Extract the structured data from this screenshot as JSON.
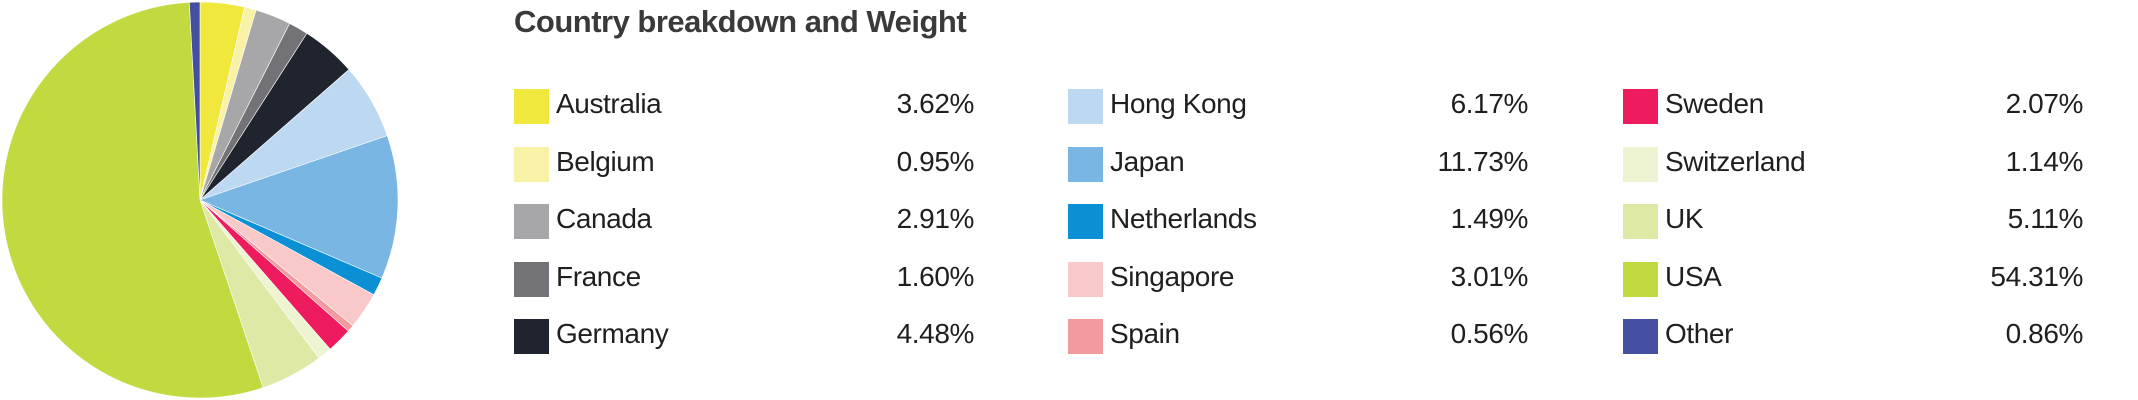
{
  "chart_data": {
    "type": "pie",
    "title": "Country breakdown and Weight",
    "slices": [
      {
        "label": "Australia",
        "value": "3.62%",
        "weight": 3.62,
        "color": "#f0e83c"
      },
      {
        "label": "Belgium",
        "value": "0.95%",
        "weight": 0.95,
        "color": "#f7f2a6"
      },
      {
        "label": "Canada",
        "value": "2.91%",
        "weight": 2.91,
        "color": "#a7a7a9"
      },
      {
        "label": "France",
        "value": "1.60%",
        "weight": 1.6,
        "color": "#737377"
      },
      {
        "label": "Germany",
        "value": "4.48%",
        "weight": 4.48,
        "color": "#20242f"
      },
      {
        "label": "Hong Kong",
        "value": "6.17%",
        "weight": 6.17,
        "color": "#bdd8f1"
      },
      {
        "label": "Japan",
        "value": "11.73%",
        "weight": 11.73,
        "color": "#7ab6e3"
      },
      {
        "label": "Netherlands",
        "value": "1.49%",
        "weight": 1.49,
        "color": "#0b8fd5"
      },
      {
        "label": "Singapore",
        "value": "3.01%",
        "weight": 3.01,
        "color": "#f8c9c8"
      },
      {
        "label": "Spain",
        "value": "0.56%",
        "weight": 0.56,
        "color": "#f29a9e"
      },
      {
        "label": "Sweden",
        "value": "2.07%",
        "weight": 2.07,
        "color": "#ee1b5e"
      },
      {
        "label": "Switzerland",
        "value": "1.14%",
        "weight": 1.14,
        "color": "#eef3d2"
      },
      {
        "label": "UK",
        "value": "5.11%",
        "weight": 5.11,
        "color": "#dfe9a6"
      },
      {
        "label": "USA",
        "value": "54.31%",
        "weight": 54.31,
        "color": "#c2d93f"
      },
      {
        "label": "Other",
        "value": "0.86%",
        "weight": 0.86,
        "color": "#44509f"
      }
    ],
    "legend_layout": "three columns, five rows, right of pie"
  }
}
